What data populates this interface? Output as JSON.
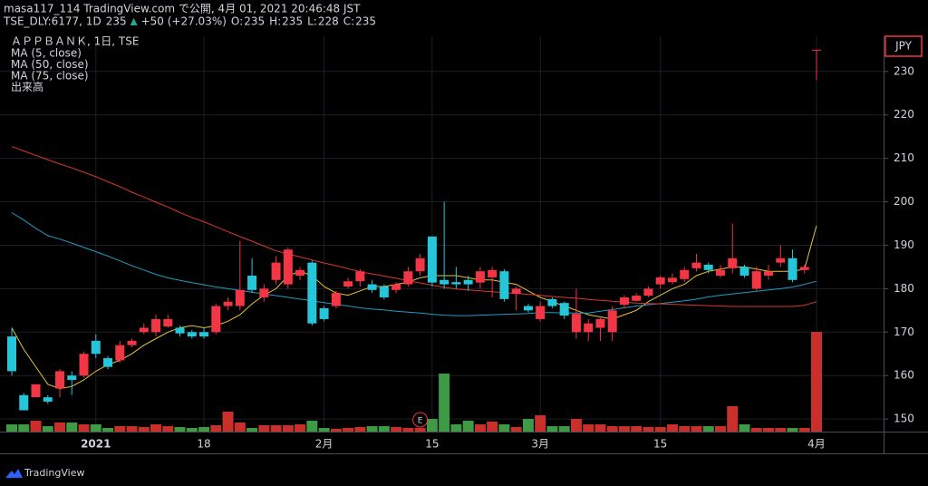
{
  "header": {
    "line1": "masa117_114 TradingView.com で公開, 4月 01, 2021 20:46:48 JST",
    "symbol": "TSE_DLY:6177, 1D",
    "price": "235",
    "change": "+50 (+27.03%)",
    "ohlc": [
      {
        "label": "O:",
        "value": "235"
      },
      {
        "label": "H:",
        "value": "235"
      },
      {
        "label": "L:",
        "value": "228"
      },
      {
        "label": "C:",
        "value": "235"
      }
    ]
  },
  "footer": {
    "brand": "TradingView"
  },
  "chart_data": {
    "type": "candlestick",
    "title": "ＡＰＰＢＡＮＫ, 1日, TSE",
    "currency": "JPY",
    "volume_name": "出来高",
    "categories": [
      null,
      null,
      null,
      null,
      null,
      null,
      null,
      "2021",
      null,
      null,
      null,
      null,
      null,
      null,
      null,
      null,
      "18",
      null,
      null,
      null,
      null,
      null,
      null,
      null,
      null,
      null,
      "2月",
      null,
      null,
      null,
      null,
      null,
      null,
      null,
      null,
      "15",
      null,
      null,
      null,
      null,
      null,
      null,
      null,
      null,
      "3月",
      null,
      null,
      null,
      null,
      null,
      null,
      null,
      null,
      null,
      "15",
      null,
      null,
      null,
      null,
      null,
      null,
      null,
      null,
      null,
      null,
      null,
      null,
      "4月"
    ],
    "open": [
      169,
      155.5,
      155,
      155,
      157,
      160,
      160,
      168,
      164,
      163.5,
      167,
      170,
      170,
      171.3,
      171,
      170,
      170,
      170,
      176,
      176,
      183,
      178,
      182,
      181,
      183,
      186,
      175.5,
      176,
      180.5,
      181.7,
      181,
      180.5,
      179.7,
      181,
      184,
      192,
      182,
      181.5,
      182,
      181.4,
      182.6,
      184,
      178.8,
      176,
      173,
      177.6,
      176.7,
      170,
      170,
      171,
      170,
      176.3,
      177.2,
      178.4,
      181,
      181.5,
      182.2,
      184.7,
      185.5,
      183,
      184.7,
      185,
      180,
      183,
      186,
      187,
      184.3,
      235
    ],
    "high": [
      171,
      156,
      158,
      155.5,
      161.5,
      161,
      165.5,
      169.5,
      164.5,
      168,
      168.5,
      172,
      174,
      174,
      171.5,
      170.5,
      171,
      176.5,
      178,
      191,
      187,
      181,
      187.5,
      189.5,
      185,
      186.5,
      176,
      179.5,
      182.5,
      184.5,
      182,
      181,
      181.5,
      185,
      188,
      192,
      200,
      185,
      183,
      185,
      185,
      184.5,
      180.5,
      176.5,
      177,
      178,
      177,
      180,
      173,
      173.5,
      176,
      178.5,
      179,
      180.5,
      183,
      183.5,
      185,
      188,
      186,
      185.5,
      195,
      185.5,
      185,
      185.5,
      190,
      189,
      185.5,
      235
    ],
    "low": [
      160,
      152,
      155,
      153.5,
      155,
      155.5,
      159.5,
      164,
      161.5,
      163,
      166.5,
      169.5,
      169,
      171,
      169,
      168.5,
      168.5,
      169.5,
      175,
      175,
      179,
      177,
      181,
      180,
      182,
      171.5,
      172.5,
      175.5,
      180,
      180.5,
      179,
      177.5,
      179,
      180.5,
      183,
      180.5,
      180,
      180,
      179.5,
      180,
      178,
      177,
      175,
      174.5,
      172.5,
      175.5,
      173,
      168.5,
      168,
      168,
      168,
      175.5,
      177,
      178,
      180,
      181,
      181.5,
      184,
      183.5,
      182.5,
      183.5,
      182.5,
      179.5,
      182,
      185,
      181.5,
      183.5,
      228
    ],
    "close": [
      161,
      152,
      158,
      154,
      161,
      159,
      165,
      165,
      162,
      167,
      168,
      171,
      173,
      173,
      169.7,
      169,
      169,
      176,
      177,
      179.7,
      179.7,
      180,
      186,
      189,
      184.3,
      172,
      173,
      179,
      181.7,
      184,
      179.7,
      178,
      181,
      184,
      187,
      181.4,
      181,
      181,
      181,
      184,
      184.3,
      177.6,
      180,
      175,
      176,
      176,
      173.8,
      174.2,
      172,
      173,
      175,
      178,
      178.4,
      180,
      182.6,
      182.5,
      184.3,
      186,
      184.3,
      184.3,
      187,
      183,
      184,
      184,
      187,
      182,
      185,
      235
    ],
    "volume": [
      8,
      8,
      12,
      6,
      10,
      10,
      8,
      8,
      4,
      6,
      6,
      5,
      8,
      6,
      5,
      4,
      5,
      7,
      22,
      10,
      4,
      7,
      7,
      7,
      8,
      12,
      4,
      3,
      4,
      5,
      6,
      6,
      5,
      4,
      4,
      14,
      64,
      8,
      12,
      8,
      11,
      8,
      5,
      14,
      18,
      6,
      6,
      14,
      8,
      8,
      6,
      6,
      6,
      5,
      5,
      8,
      6,
      6,
      6,
      6,
      28,
      8,
      4,
      4,
      4,
      4,
      4,
      110
    ],
    "volume_ylim": [
      0,
      436
    ],
    "up_color": "#f23645",
    "down_color": "#26c6da",
    "volume_up_color": "#c9302c",
    "volume_down_color": "#3e9a44",
    "series": [
      {
        "name": "MA (5, close)",
        "color": "#e9c23a",
        "values": [
          171,
          166,
          162,
          158,
          157,
          157.5,
          159,
          161,
          162.5,
          163.5,
          165,
          167,
          168.5,
          170,
          171,
          171.5,
          171,
          171.5,
          172.5,
          174,
          176.5,
          178.5,
          180,
          183,
          184,
          183,
          180.5,
          179,
          178.5,
          179.5,
          180.5,
          180.5,
          181,
          181.5,
          182.5,
          183,
          183,
          183,
          182.5,
          182,
          182,
          181.5,
          181,
          179.5,
          178,
          177,
          176,
          175,
          174,
          173.5,
          173,
          174,
          175,
          177,
          178.5,
          180,
          181,
          183,
          184,
          184.5,
          185,
          185,
          184.5,
          184,
          184,
          184,
          184.5,
          194.5
        ]
      },
      {
        "name": "MA (50, close)",
        "color": "#1f9cc4",
        "values": [
          197.5,
          195.8,
          193.9,
          192.2,
          191.4,
          190.5,
          189.5,
          188.5,
          187.5,
          186.4,
          185.3,
          184.3,
          183.3,
          182.5,
          181.9,
          181.4,
          180.9,
          180.4,
          180,
          179.6,
          179.2,
          178.8,
          178.4,
          178,
          177.6,
          177.2,
          176.8,
          176.4,
          176,
          175.6,
          175.3,
          175.1,
          174.8,
          174.6,
          174.4,
          174.1,
          173.9,
          173.8,
          173.8,
          173.9,
          174,
          174.1,
          174.2,
          174.3,
          174.5,
          174.5,
          174.4,
          174.4,
          174.4,
          174.8,
          175.2,
          175.6,
          176,
          176.3,
          176.6,
          176.9,
          177.2,
          177.6,
          178.1,
          178.5,
          178.8,
          179.1,
          179.4,
          179.7,
          180,
          180.4,
          181,
          181.7
        ]
      },
      {
        "name": "MA (75, close)",
        "color": "#d9382d",
        "values": [
          212.7,
          211.7,
          210.7,
          209.7,
          208.7,
          207.8,
          206.8,
          205.8,
          204.6,
          203.5,
          202.2,
          201.1,
          199.9,
          198.8,
          197.5,
          196.4,
          195.4,
          194.3,
          193.1,
          192,
          190.9,
          189.8,
          188.7,
          188,
          187.3,
          186.6,
          185.9,
          185.3,
          184.6,
          183.9,
          183.4,
          182.9,
          182.4,
          181.8,
          181.3,
          180.8,
          180.3,
          179.9,
          179.7,
          179.5,
          179.3,
          179.1,
          178.9,
          178.7,
          178.5,
          178.2,
          178,
          177.8,
          177.5,
          177.3,
          177.1,
          176.9,
          176.7,
          176.6,
          176.5,
          176.4,
          176.3,
          176.2,
          176.1,
          176,
          175.9,
          175.9,
          175.9,
          175.9,
          175.9,
          175.9,
          176.2,
          177
        ]
      }
    ],
    "earnings": {
      "label": "E",
      "index": 34
    },
    "ylim": [
      147.1,
      238.1
    ],
    "yticks": [
      150,
      160,
      170,
      180,
      190,
      200,
      210,
      220,
      230
    ],
    "grid": true
  }
}
